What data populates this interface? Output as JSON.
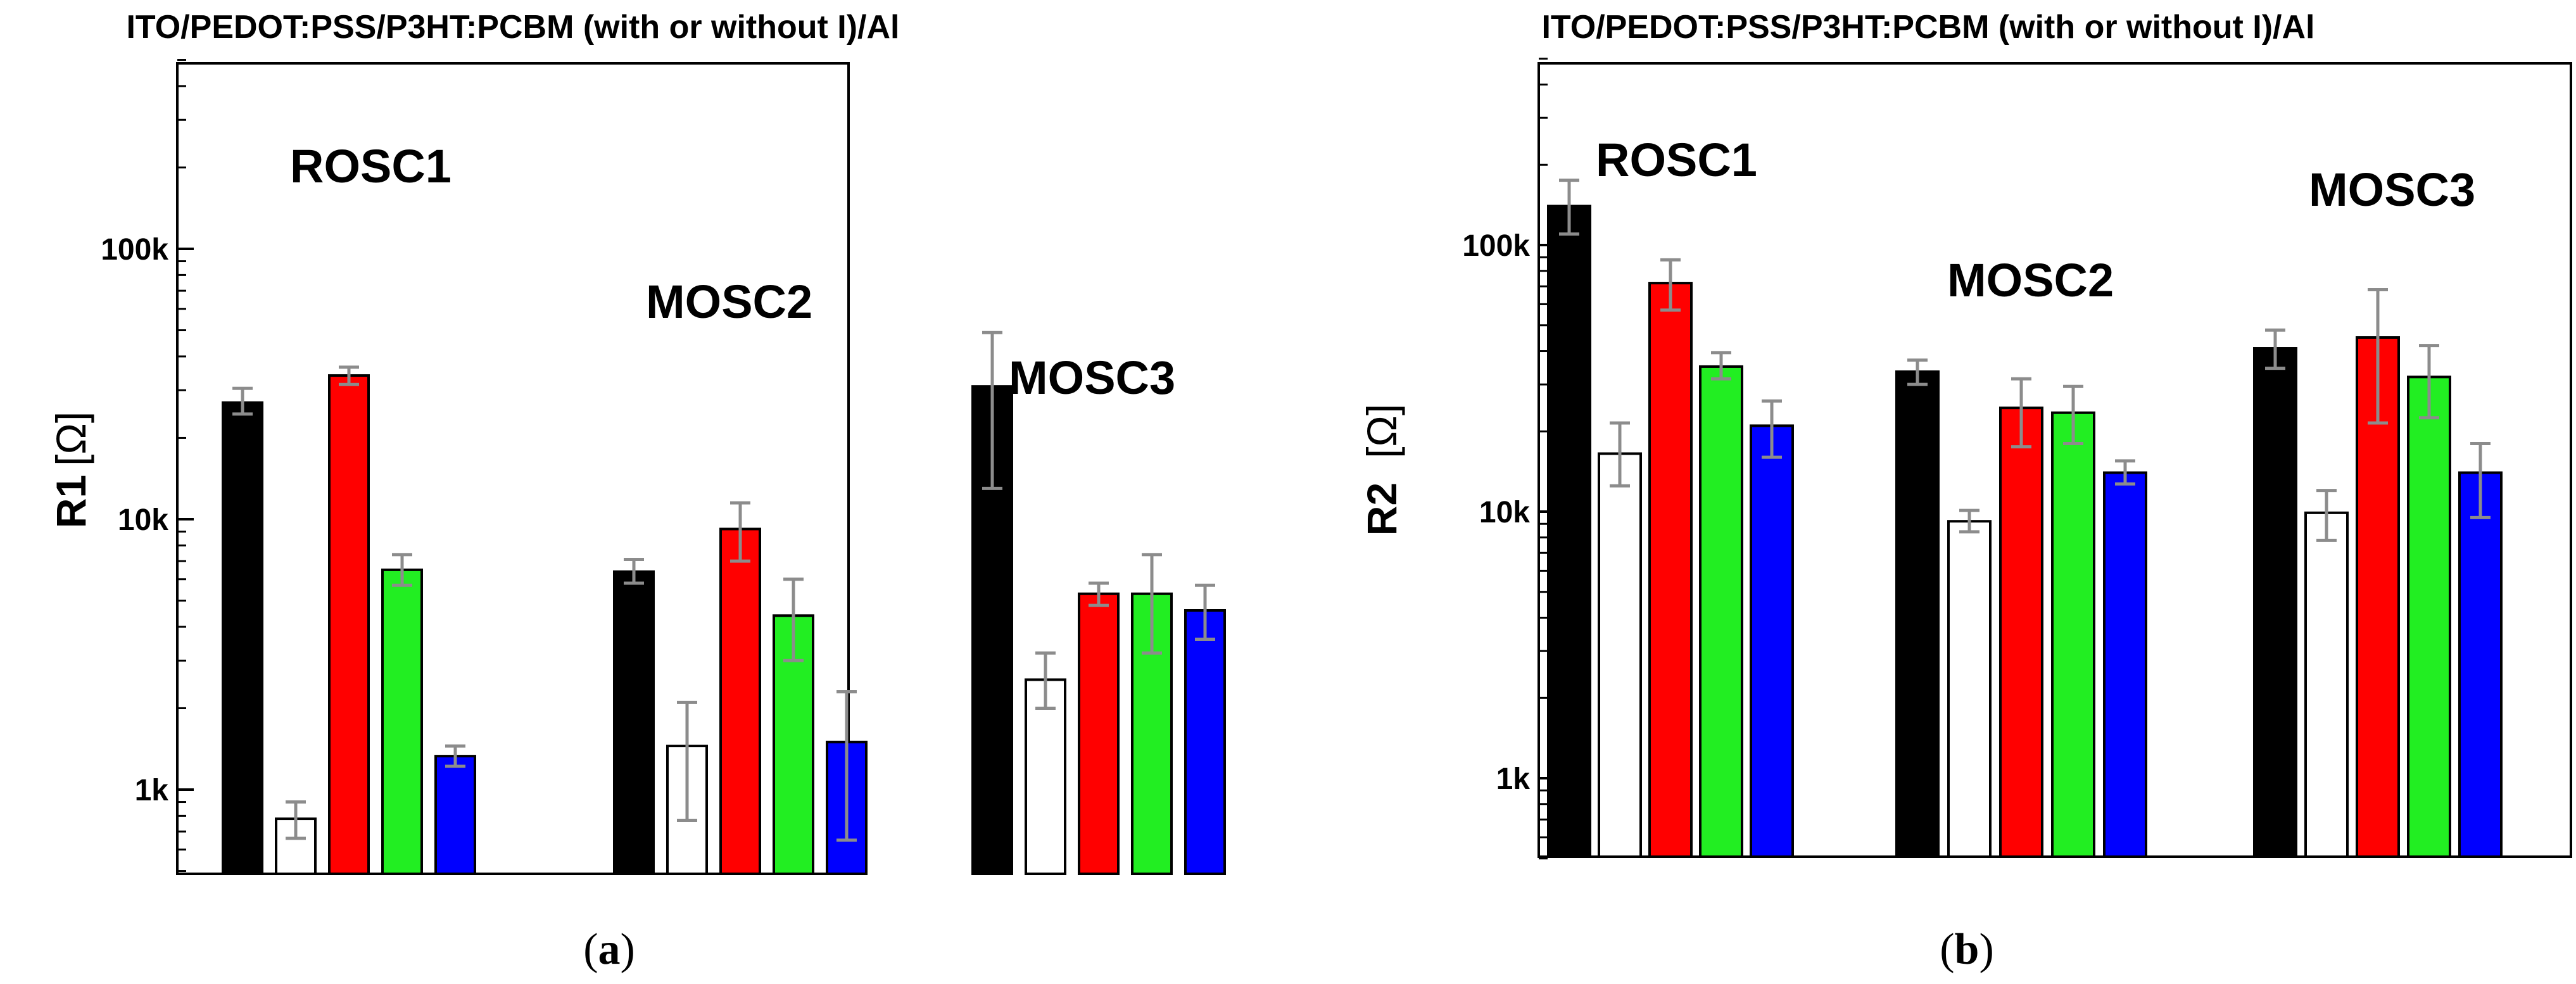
{
  "chart_data": [
    {
      "type": "bar",
      "title": "ITO/PEDOT:PSS/P3HT:PCBM (with or without I)/Al",
      "ylabel_main": "R1",
      "ylabel_unit": "[Ω]",
      "caption_label": "a",
      "yscale": "log",
      "ylim": [
        500,
        500000
      ],
      "yticks": [
        1000,
        10000,
        100000
      ],
      "ytick_labels": [
        "1k",
        "10k",
        "100k"
      ],
      "groups": [
        {
          "label": "ROSC1",
          "values": [
            27000,
            780,
            34000,
            6500,
            1330
          ],
          "errors": [
            [
              24500,
              30500
            ],
            [
              660,
              900
            ],
            [
              31500,
              36500
            ],
            [
              5700,
              7400
            ],
            [
              1220,
              1450
            ]
          ]
        },
        {
          "label": "MOSC2",
          "values": [
            6400,
            1450,
            9200,
            4400,
            1500
          ],
          "errors": [
            [
              5800,
              7100
            ],
            [
              770,
              2100
            ],
            [
              7000,
              11500
            ],
            [
              3000,
              6000
            ],
            [
              650,
              2300
            ]
          ]
        },
        {
          "label": "MOSC3",
          "values": [
            31000,
            2550,
            5300,
            5300,
            4600
          ],
          "errors": [
            [
              13000,
              49000
            ],
            [
              2000,
              3200
            ],
            [
              4800,
              5800
            ],
            [
              3200,
              7400
            ],
            [
              3600,
              5700
            ]
          ]
        }
      ]
    },
    {
      "type": "bar",
      "title": "ITO/PEDOT:PSS/P3HT:PCBM (with or without I)/Al",
      "ylabel_main": "R2",
      "ylabel_unit": "[Ω]",
      "caption_label": "b",
      "yscale": "log",
      "ylim": [
        500,
        500000
      ],
      "yticks": [
        1000,
        10000,
        100000
      ],
      "ytick_labels": [
        "1k",
        "10k",
        "100k"
      ],
      "groups": [
        {
          "label": "ROSC1",
          "values": [
            140000,
            16500,
            72000,
            35000,
            21000
          ],
          "errors": [
            [
              110000,
              175000
            ],
            [
              12500,
              21500
            ],
            [
              57000,
              88000
            ],
            [
              31500,
              39500
            ],
            [
              16000,
              26000
            ]
          ]
        },
        {
          "label": "MOSC2",
          "values": [
            33500,
            9200,
            24500,
            23500,
            14000
          ],
          "errors": [
            [
              30000,
              37000
            ],
            [
              8400,
              10100
            ],
            [
              17500,
              31500
            ],
            [
              18000,
              29500
            ],
            [
              12700,
              15500
            ]
          ]
        },
        {
          "label": "MOSC3",
          "values": [
            41000,
            9900,
            45000,
            32000,
            14000
          ],
          "errors": [
            [
              34500,
              48000
            ],
            [
              7800,
              12000
            ],
            [
              21500,
              68000
            ],
            [
              22500,
              42000
            ],
            [
              9500,
              18000
            ]
          ]
        }
      ]
    }
  ],
  "bar_colors": [
    "#000000",
    "#ffffff",
    "#ff0000",
    "#22ee22",
    "#0000ff"
  ],
  "errorbar_color": "#8c8c8c",
  "caption_open": "(",
  "caption_close": ")"
}
